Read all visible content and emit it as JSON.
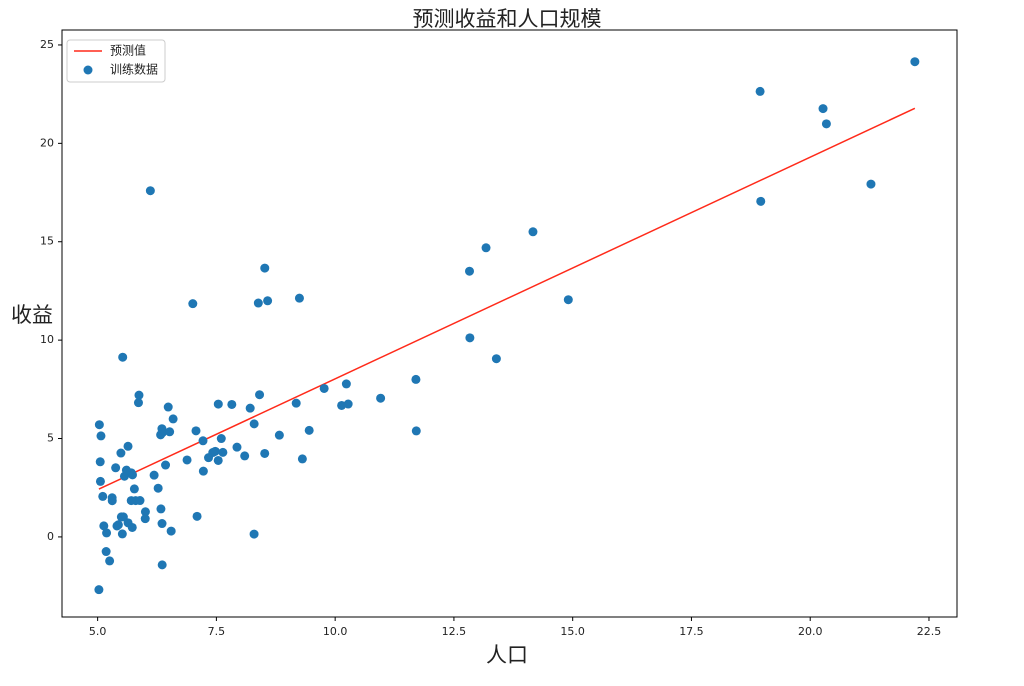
{
  "chart_data": {
    "type": "scatter",
    "title": "预测收益和人口规模",
    "xlabel": "人口",
    "ylabel": "收益",
    "xlim": [
      4.25,
      23.09
    ],
    "ylim": [
      -4.07,
      25.76
    ],
    "xticks": [
      {
        "value": 5,
        "label": "5.0"
      },
      {
        "value": 7.5,
        "label": "7.5"
      },
      {
        "value": 10,
        "label": "10.0"
      },
      12.5,
      {
        "value": 15,
        "label": "15.0"
      },
      17.5,
      {
        "value": 20,
        "label": "20.0"
      },
      22.5
    ],
    "yticks": [
      0,
      5,
      10,
      15,
      20,
      25
    ],
    "legend": "upper left",
    "series": [
      {
        "name": "预测值",
        "type": "line",
        "color": "#ff2a1a",
        "x": [
          5.0269,
          22.203
        ],
        "values": [
          2.43,
          21.78
        ]
      },
      {
        "name": "训练数据",
        "type": "scatter",
        "color": "#1f77b4",
        "x": [
          6.1101,
          5.5277,
          8.5186,
          7.0032,
          5.8598,
          8.3829,
          7.4764,
          8.5781,
          6.4862,
          5.0546,
          5.7107,
          14.164,
          5.734,
          8.4084,
          5.6407,
          5.3794,
          6.3654,
          5.1301,
          6.4296,
          7.0708,
          6.1891,
          20.27,
          5.4901,
          6.3261,
          5.5649,
          18.945,
          12.828,
          10.957,
          13.176,
          22.203,
          5.2524,
          6.5894,
          9.2482,
          5.8918,
          8.2111,
          7.9334,
          8.0959,
          5.6063,
          12.836,
          6.3534,
          5.4069,
          6.8825,
          11.708,
          5.7737,
          7.8247,
          7.0931,
          5.0702,
          5.8014,
          11.7,
          5.5416,
          7.5402,
          5.3077,
          7.4239,
          7.6031,
          6.3328,
          6.3589,
          6.2742,
          5.6397,
          9.3102,
          9.4536,
          8.8254,
          5.1793,
          21.279,
          14.908,
          18.959,
          7.2182,
          8.2951,
          10.236,
          5.4994,
          20.341,
          10.136,
          7.3345,
          6.0062,
          7.2259,
          5.0269,
          6.5479,
          7.5386,
          5.0365,
          10.274,
          5.1077,
          5.7292,
          5.1884,
          6.3557,
          9.7687,
          6.5159,
          8.5172,
          9.1802,
          6.002,
          5.5204,
          5.0594,
          5.7077,
          7.6366,
          5.8707,
          5.3054,
          8.2934,
          13.394,
          5.4369
        ],
        "values": [
          17.592,
          9.1302,
          13.662,
          11.854,
          6.8233,
          11.886,
          4.3483,
          12,
          6.5987,
          3.8166,
          3.2522,
          15.505,
          3.1551,
          7.2258,
          0.71618,
          3.5129,
          5.3048,
          0.56077,
          3.6518,
          5.3893,
          3.1386,
          21.767,
          4.263,
          5.1875,
          3.0825,
          22.638,
          13.501,
          7.0467,
          14.692,
          24.147,
          -1.22,
          5.9966,
          12.134,
          1.8495,
          6.5426,
          4.5623,
          4.1164,
          3.3928,
          10.117,
          5.4974,
          0.55657,
          3.9115,
          5.3854,
          2.4406,
          6.7318,
          1.0463,
          5.1337,
          1.844,
          8.0043,
          1.0179,
          6.7504,
          1.8396,
          4.2885,
          4.9981,
          1.4233,
          -1.4211,
          2.4756,
          4.6042,
          3.9624,
          5.4141,
          5.1694,
          -0.74279,
          17.929,
          12.054,
          17.054,
          4.8852,
          5.7442,
          7.7754,
          1.0173,
          20.992,
          6.6799,
          4.0259,
          1.2784,
          3.3411,
          -2.6807,
          0.29678,
          3.8845,
          5.7014,
          6.7526,
          2.0576,
          0.47953,
          0.20421,
          0.67861,
          7.5435,
          5.3436,
          4.2415,
          6.7981,
          0.92695,
          0.152,
          2.8214,
          1.8451,
          4.2959,
          7.2029,
          1.9869,
          0.14454,
          9.0551,
          0.61705
        ]
      }
    ]
  }
}
